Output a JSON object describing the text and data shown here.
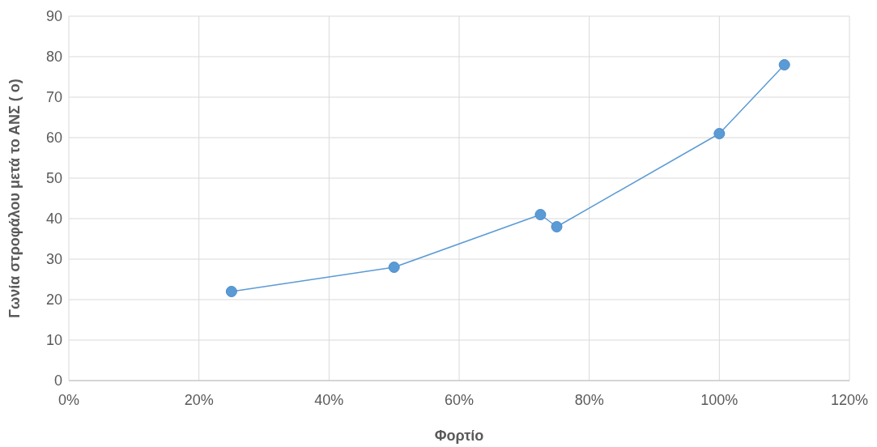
{
  "chart_data": {
    "type": "line",
    "xlabel": "Φορτίο",
    "ylabel": "Γωνία στροφάλου μετά το ΑΝΣ ( ο)",
    "x": [
      25,
      50,
      72.5,
      75,
      100,
      110
    ],
    "series": [
      {
        "color": "#5b9bd5",
        "values": [
          22,
          28,
          41,
          38,
          61,
          78
        ]
      }
    ],
    "xlim": [
      0,
      120
    ],
    "xticks": [
      {
        "value": 0,
        "label": "0%"
      },
      {
        "value": 20,
        "label": "20%"
      },
      {
        "value": 40,
        "label": "40%"
      },
      {
        "value": 60,
        "label": "60%"
      },
      {
        "value": 80,
        "label": "80%"
      },
      {
        "value": 100,
        "label": "100%"
      },
      {
        "value": 120,
        "label": "120%"
      }
    ],
    "ylim": [
      0,
      90
    ],
    "yticks": [
      0,
      10,
      20,
      30,
      40,
      50,
      60,
      70,
      80,
      90
    ],
    "grid": true,
    "marker": "circle",
    "line_style": "solid"
  }
}
